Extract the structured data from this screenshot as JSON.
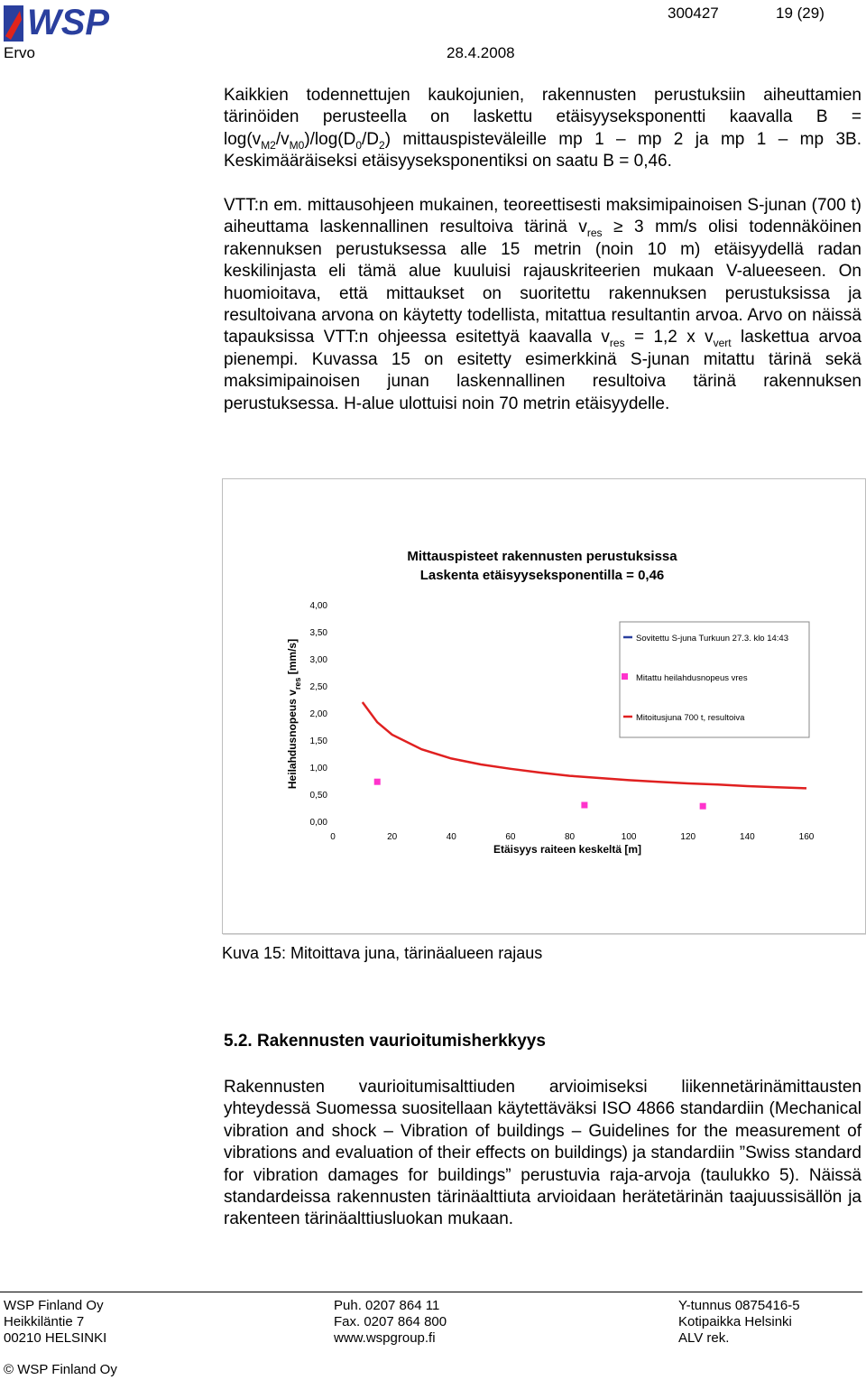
{
  "header": {
    "logo": "WSP",
    "author": "Ervo",
    "date": "28.4.2008",
    "doc_number": "300427",
    "page": "19 (29)"
  },
  "paragraphs": [
    [
      {
        "text": "Kaikkien todennettujen kaukojunien, rakennusten perustuksiin aiheuttamien tärinöiden perusteella on laskettu etäisyyseksponentti kaavalla B = log(v"
      },
      {
        "sub": "M2"
      },
      {
        "text": "/v"
      },
      {
        "sub": "M0"
      },
      {
        "text": ")/log(D"
      },
      {
        "sub": "0"
      },
      {
        "text": "/D"
      },
      {
        "sub": "2"
      },
      {
        "text": ") mittauspisteväleille mp 1 – mp 2 ja mp 1 – mp 3B. Keskimääräiseksi etäisyyseksponentiksi on saatu B = 0,46."
      }
    ],
    [
      {
        "text": "VTT:n em. mittausohjeen mukainen, teoreettisesti maksimipainoisen S-junan (700 t) aiheuttama laskennallinen resultoiva tärinä v"
      },
      {
        "sub": "res"
      },
      {
        "text": " ≥ 3 mm/s olisi todennäköinen rakennuksen perustuksessa alle 15 metrin (noin 10 m) etäisyydellä radan keskilinjasta eli tämä alue kuuluisi rajauskriteerien mukaan V-alueeseen. On huomioitava, että mittaukset on suoritettu rakennuksen perustuksissa ja resultoivana arvona on käytetty todellista, mitattua resultantin arvoa. Arvo on näissä tapauksissa VTT:n ohjeessa esitettyä kaavalla v"
      },
      {
        "sub": "res"
      },
      {
        "text": " = 1,2 x v"
      },
      {
        "sub": "vert"
      },
      {
        "text": " laskettua arvoa pienempi. Kuvassa 15 on esitetty esimerkkinä S-junan mitattu tärinä sekä maksimipainoisen junan laskennallinen resultoiva tärinä rakennuksen perustuksessa. H-alue ulottuisi noin 70 metrin etäisyydelle."
      }
    ]
  ],
  "chart_data": {
    "type": "line",
    "title": [
      "Mittauspisteet rakennusten perustuksissa",
      "Laskenta etäisyyseksponentilla = 0,46"
    ],
    "ylabel": [
      {
        "text": "Heilahdusnopeus v"
      },
      {
        "sub": "res"
      },
      {
        "text": " [mm/s]"
      }
    ],
    "xlabel": "Etäisyys raiteen keskeltä [m]",
    "xlim": [
      0,
      160
    ],
    "xticks": [
      0,
      20,
      40,
      60,
      80,
      100,
      120,
      140,
      160
    ],
    "ylim": [
      0,
      4
    ],
    "yticks": [
      {
        "value": 0,
        "label": "0,00"
      },
      {
        "value": 0.5,
        "label": "0,50"
      },
      {
        "value": 1,
        "label": "1,00"
      },
      {
        "value": 1.5,
        "label": "1,50"
      },
      {
        "value": 2,
        "label": "2,00"
      },
      {
        "value": 2.5,
        "label": "2,50"
      },
      {
        "value": 3,
        "label": "3,00"
      },
      {
        "value": 3.5,
        "label": "3,50"
      },
      {
        "value": 4,
        "label": "4,00"
      }
    ],
    "grid": false,
    "legend": "right",
    "series": [
      {
        "name": "Sovitettu S-juna Turkuun 27.3. klo 14:43",
        "color": "#2a3f9e",
        "type": "line",
        "x": [],
        "values": []
      },
      {
        "name": "Mitattu heilahdusnopeus vres",
        "color": "#ff33cc",
        "type": "scatter",
        "x": [
          15,
          85,
          125
        ],
        "values": [
          0.73,
          0.3,
          0.28
        ]
      },
      {
        "name": "Mitoitusjuna 700 t, resultoiva",
        "color": "#e02020",
        "type": "line",
        "x": [
          10,
          15,
          20,
          30,
          40,
          50,
          60,
          70,
          80,
          90,
          100,
          110,
          120,
          130,
          140,
          150,
          160
        ],
        "values": [
          2.2,
          1.83,
          1.6,
          1.33,
          1.16,
          1.05,
          0.97,
          0.9,
          0.84,
          0.8,
          0.76,
          0.73,
          0.7,
          0.68,
          0.65,
          0.63,
          0.61
        ]
      }
    ]
  },
  "caption": "Kuva 15: Mitoittava juna, tärinäalueen rajaus",
  "section_heading": "5.2. Rakennusten vaurioitumisherkkyys",
  "section_paragraphs": [
    [
      {
        "text": "Rakennusten vaurioitumisalttiuden arvioimiseksi liikennetärinämittausten yhteydessä Suomessa suositellaan käytettäväksi ISO 4866 standardiin (Mechanical vibration and shock – Vibration of buildings – Guidelines for the measurement of vibrations and evaluation of their effects on buildings) ja standardiin ”Swiss standard for vibration damages for buildings” perustuvia raja-arvoja (taulukko 5). Näissä standardeissa rakennusten tärinäalttiuta arvioidaan herätetärinän taajuussisällön ja rakenteen tärinäalttiusluokan mukaan."
      }
    ]
  ],
  "footer": {
    "columns": [
      [
        "WSP Finland Oy",
        "Heikkiläntie 7",
        "00210 HELSINKI"
      ],
      [
        "Puh. 0207 864 11",
        "Fax. 0207 864 800",
        "www.wspgroup.fi"
      ],
      [
        "Y-tunnus 0875416-5",
        "Kotipaikka Helsinki",
        "ALV rek."
      ]
    ],
    "copyright": "© WSP Finland Oy"
  }
}
